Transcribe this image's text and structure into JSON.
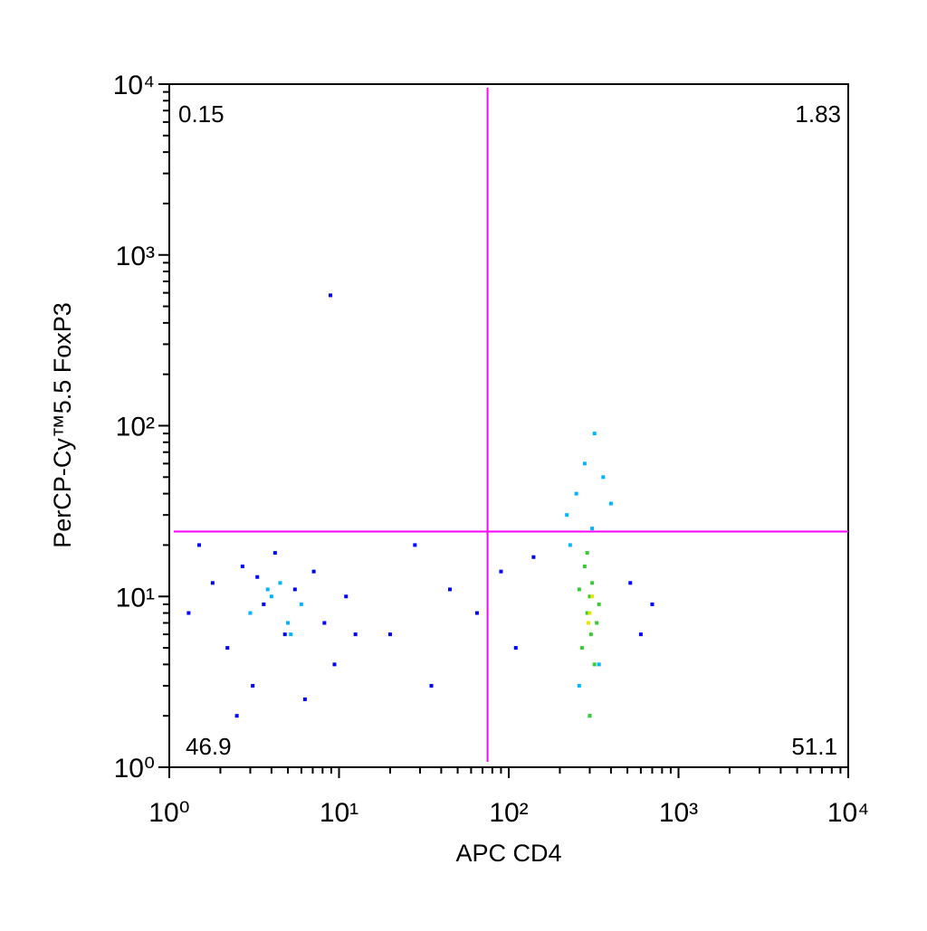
{
  "chart_data": {
    "type": "scatter",
    "x_label": "APC CD4",
    "y_label": "PerCP-Cy™5.5 FoxP3",
    "log_scale": true,
    "minor_ticks": true,
    "xlim": [
      1,
      10000
    ],
    "ylim": [
      1,
      10000
    ],
    "xticks": [
      {
        "value": 1,
        "label": "10⁰"
      },
      {
        "value": 10,
        "label": "10¹"
      },
      {
        "value": 100,
        "label": "10²"
      },
      {
        "value": 1000,
        "label": "10³"
      },
      {
        "value": 10000,
        "label": "10⁴"
      }
    ],
    "yticks": [
      {
        "value": 1,
        "label": "10⁰"
      },
      {
        "value": 10,
        "label": "10¹"
      },
      {
        "value": 100,
        "label": "10²"
      },
      {
        "value": 1000,
        "label": "10³"
      },
      {
        "value": 10000,
        "label": "10⁴"
      }
    ],
    "gate_x": 75,
    "gate_y": 24,
    "gate_color": "#ff00ff",
    "quadrants": {
      "upper_left": 0.15,
      "upper_right": 1.83,
      "lower_left": 46.9,
      "lower_right": 51.1
    },
    "series": [
      {
        "color": "#0000ff",
        "x": [
          1.3,
          1.8,
          2.2,
          2.7,
          3.1,
          3.6,
          4.2,
          4.8,
          5.5,
          6.3,
          7.1,
          8.2,
          9.4,
          11,
          12.5,
          1.5,
          2.5,
          3.3,
          20,
          28,
          35,
          45,
          65,
          90,
          110,
          140,
          520,
          600,
          700,
          8.9
        ],
        "values": [
          8,
          12,
          5,
          15,
          3,
          9,
          18,
          6,
          11,
          2.5,
          14,
          7,
          4,
          10,
          6,
          20,
          2,
          13,
          6,
          20,
          3,
          11,
          8,
          14,
          5,
          17,
          12,
          6,
          9,
          580
        ]
      },
      {
        "color": "#00b4ff",
        "x": [
          3,
          4,
          5,
          6,
          4.5,
          5.2,
          3.8,
          250,
          280,
          220,
          320,
          360,
          400,
          260,
          300,
          340,
          230,
          310
        ],
        "values": [
          8,
          10,
          7,
          9,
          12,
          6,
          11,
          40,
          60,
          30,
          90,
          50,
          35,
          3,
          2,
          4,
          20,
          25
        ]
      },
      {
        "color": "#33cc33",
        "x": [
          270,
          290,
          300,
          310,
          330,
          280,
          320,
          300,
          290,
          340,
          260,
          305
        ],
        "values": [
          5,
          8,
          10,
          12,
          7,
          15,
          4,
          2,
          18,
          9,
          11,
          6
        ]
      },
      {
        "color": "#e6e600",
        "x": [
          300,
          310,
          295
        ],
        "values": [
          8,
          10,
          7
        ]
      }
    ]
  }
}
